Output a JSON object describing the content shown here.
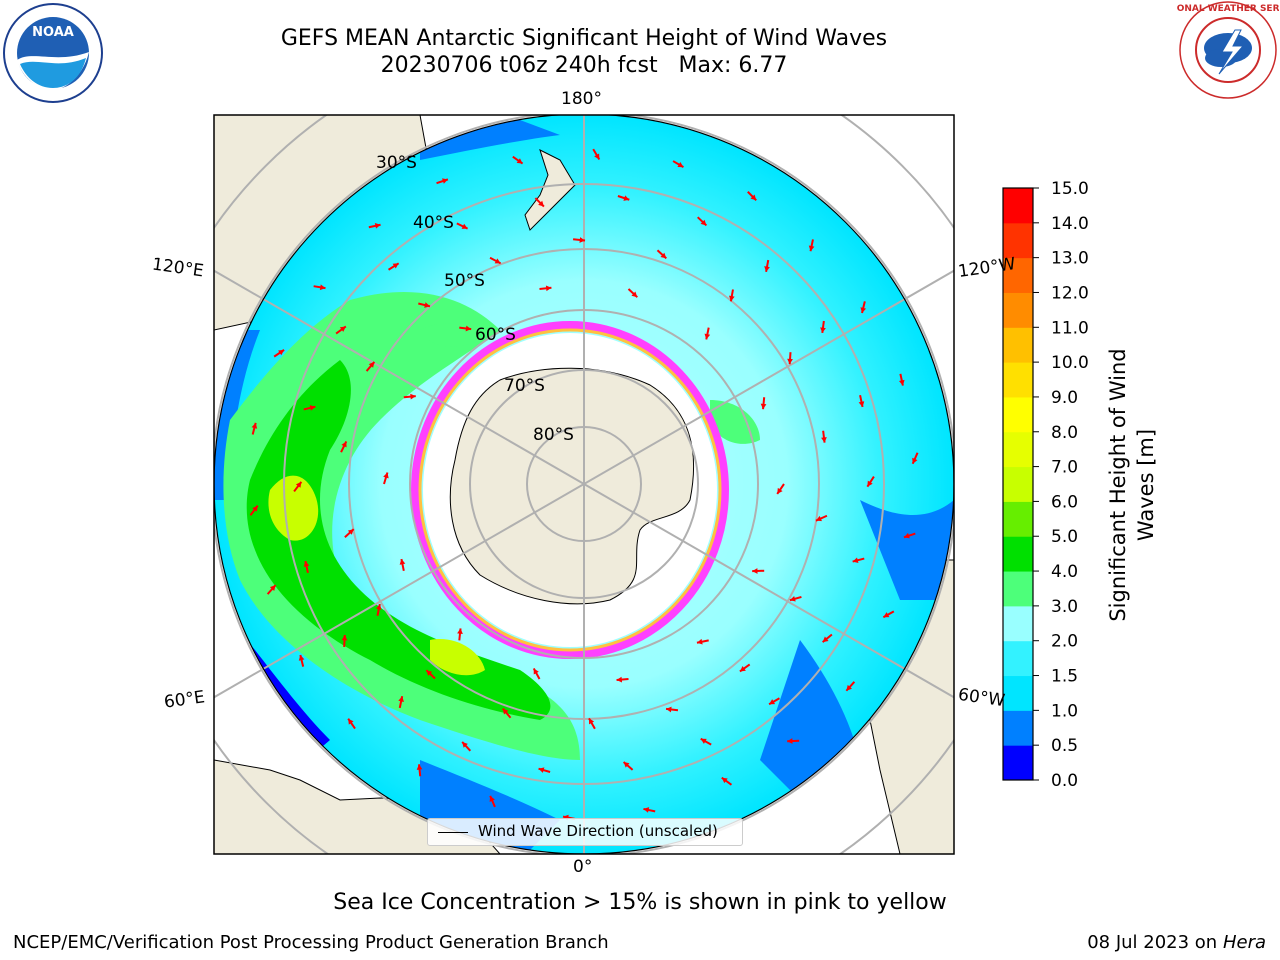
{
  "title": {
    "line1": "GEFS MEAN Antarctic Significant Height of Wind Waves",
    "line2": "20230706 t06z 240h fcst   Max: 6.77"
  },
  "map": {
    "projection": "south-polar-stereographic",
    "longitude_labels": [
      "180°",
      "120°E",
      "120°W",
      "60°E",
      "60°W",
      "0°"
    ],
    "latitude_labels": [
      "30°S",
      "40°S",
      "50°S",
      "60°S",
      "70°S",
      "80°S"
    ],
    "legend_label": "Wind Wave Direction (unscaled)",
    "arrow_color": "#ff0000"
  },
  "colorbar": {
    "title": "Significant Height of Wind Waves [m]",
    "ticks": [
      "0.0",
      "0.5",
      "1.0",
      "1.5",
      "2.0",
      "3.0",
      "4.0",
      "5.0",
      "6.0",
      "7.0",
      "8.0",
      "9.0",
      "10.0",
      "11.0",
      "12.0",
      "13.0",
      "14.0",
      "15.0"
    ],
    "colors": [
      "#0000ff",
      "#0080ff",
      "#00e5ff",
      "#33f2ff",
      "#99ffff",
      "#4dff7a",
      "#00e000",
      "#66ee00",
      "#c8ff00",
      "#e6ff00",
      "#ffff00",
      "#ffe000",
      "#ffc000",
      "#ff8c00",
      "#ff6600",
      "#ff3300",
      "#ff0000"
    ]
  },
  "logos": {
    "noaa": "NOAA",
    "nws": "NATIONAL WEATHER SERVICE"
  },
  "caption": "Sea Ice Concentration > 15% is shown in pink to yellow",
  "footer": {
    "left": "NCEP/EMC/Verification Post Processing Product Generation Branch",
    "right_prefix": "08 Jul 2023 on ",
    "right_host": "Hera"
  }
}
